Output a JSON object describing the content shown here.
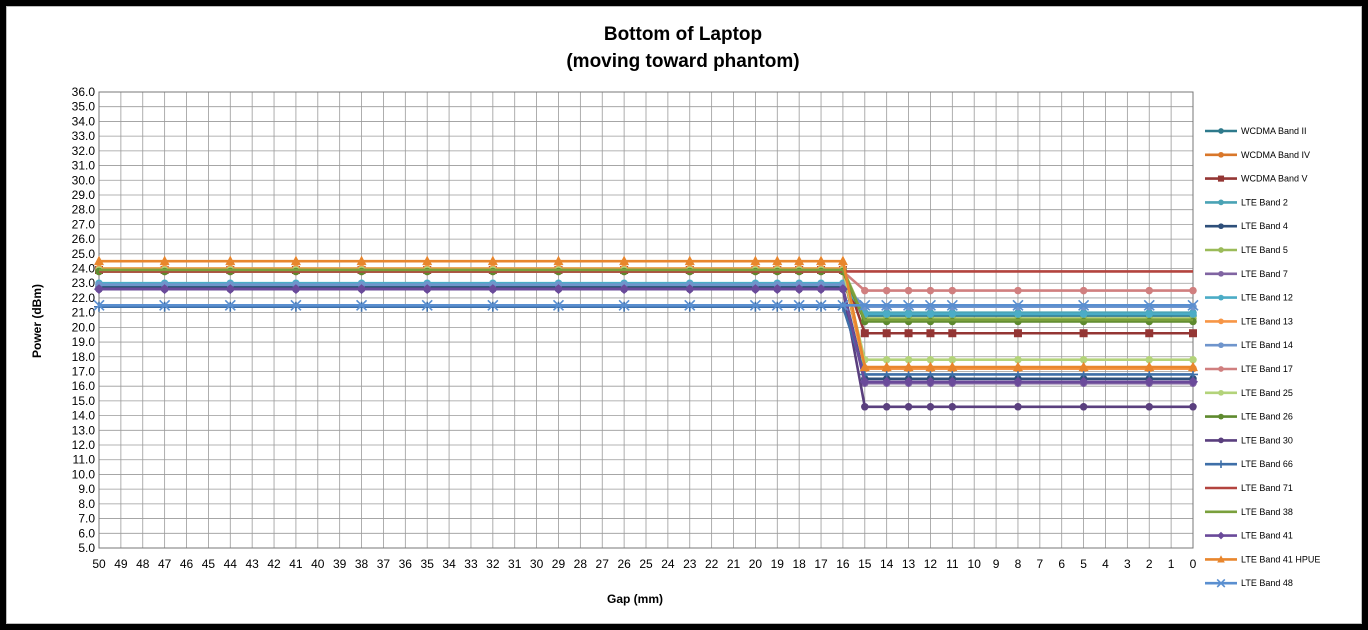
{
  "chart_data": {
    "type": "line",
    "title": "Bottom of Laptop",
    "subtitle": "(moving toward phantom)",
    "xlabel": "Gap (mm)",
    "ylabel": "Power (dBm)",
    "x_categories": [
      50,
      49,
      48,
      47,
      46,
      45,
      44,
      43,
      42,
      41,
      40,
      39,
      38,
      37,
      36,
      35,
      34,
      33,
      32,
      31,
      30,
      29,
      28,
      27,
      26,
      25,
      24,
      23,
      22,
      21,
      20,
      19,
      18,
      17,
      16,
      15,
      14,
      13,
      12,
      11,
      10,
      9,
      8,
      7,
      6,
      5,
      4,
      3,
      2,
      1,
      0
    ],
    "x_ticks": [
      "50",
      "49",
      "48",
      "47",
      "46",
      "45",
      "44",
      "43",
      "42",
      "41",
      "40",
      "39",
      "38",
      "37",
      "36",
      "35",
      "34",
      "33",
      "32",
      "31",
      "30",
      "29",
      "28",
      "27",
      "26",
      "25",
      "24",
      "23",
      "22",
      "21",
      "20",
      "19",
      "18",
      "17",
      "16",
      "15",
      "14",
      "13",
      "12",
      "11",
      "10",
      "9",
      "8",
      "7",
      "6",
      "5",
      "4",
      "3",
      "2",
      "1",
      "0"
    ],
    "ylim": [
      5,
      36
    ],
    "y_ticks": [
      "5.0",
      "6.0",
      "7.0",
      "8.0",
      "9.0",
      "10.0",
      "11.0",
      "12.0",
      "13.0",
      "14.0",
      "15.0",
      "16.0",
      "17.0",
      "18.0",
      "19.0",
      "20.0",
      "21.0",
      "22.0",
      "23.0",
      "24.0",
      "25.0",
      "26.0",
      "27.0",
      "28.0",
      "29.0",
      "30.0",
      "31.0",
      "32.0",
      "33.0",
      "34.0",
      "35.0",
      "36.0"
    ],
    "grid": true,
    "legend_position": "right",
    "marker_gaps": [
      50,
      47,
      44,
      41,
      38,
      35,
      32,
      29,
      26,
      23,
      20,
      19,
      18,
      17,
      16,
      15,
      14,
      13,
      12,
      11,
      8,
      5,
      2,
      0
    ],
    "series": [
      {
        "name": "WCDMA Band II",
        "color": "#2e7a8c",
        "marker": "circle",
        "values": [
          {
            "x": 50,
            "y": 22.8
          },
          {
            "x": 16,
            "y": 22.8
          },
          {
            "x": 15,
            "y": 20.8
          },
          {
            "x": 0,
            "y": 20.8
          }
        ]
      },
      {
        "name": "WCDMA Band IV",
        "color": "#d9772a",
        "marker": "circle",
        "values": [
          {
            "x": 50,
            "y": 23.8
          },
          {
            "x": 16,
            "y": 23.8
          },
          {
            "x": 15,
            "y": 17.2
          },
          {
            "x": 0,
            "y": 17.2
          }
        ]
      },
      {
        "name": "WCDMA Band V",
        "color": "#943634",
        "marker": "square",
        "values": [
          {
            "x": 50,
            "y": 23.9
          },
          {
            "x": 16,
            "y": 23.9
          },
          {
            "x": 15,
            "y": 19.6
          },
          {
            "x": 0,
            "y": 19.6
          }
        ]
      },
      {
        "name": "LTE Band 2",
        "color": "#4aa3b5",
        "marker": "circle",
        "values": [
          {
            "x": 50,
            "y": 22.9
          },
          {
            "x": 16,
            "y": 22.9
          },
          {
            "x": 15,
            "y": 21.0
          },
          {
            "x": 0,
            "y": 21.0
          }
        ]
      },
      {
        "name": "LTE Band 4",
        "color": "#2e4f7a",
        "marker": "circle",
        "values": [
          {
            "x": 50,
            "y": 22.7
          },
          {
            "x": 16,
            "y": 22.7
          },
          {
            "x": 15,
            "y": 16.5
          },
          {
            "x": 0,
            "y": 16.5
          }
        ]
      },
      {
        "name": "LTE Band 5",
        "color": "#9bbb59",
        "marker": "circle",
        "values": [
          {
            "x": 50,
            "y": 24.0
          },
          {
            "x": 16,
            "y": 24.0
          },
          {
            "x": 15,
            "y": 20.6
          },
          {
            "x": 0,
            "y": 20.6
          }
        ]
      },
      {
        "name": "LTE Band 7",
        "color": "#8064a2",
        "marker": "circle",
        "values": [
          {
            "x": 50,
            "y": 22.6
          },
          {
            "x": 16,
            "y": 22.6
          },
          {
            "x": 15,
            "y": 16.2
          },
          {
            "x": 0,
            "y": 16.2
          }
        ]
      },
      {
        "name": "LTE Band 12",
        "color": "#4bacc6",
        "marker": "circle",
        "values": [
          {
            "x": 50,
            "y": 23.0
          },
          {
            "x": 16,
            "y": 23.0
          },
          {
            "x": 15,
            "y": 20.9
          },
          {
            "x": 0,
            "y": 20.9
          }
        ]
      },
      {
        "name": "LTE Band 13",
        "color": "#f79646",
        "marker": "circle",
        "values": [
          {
            "x": 50,
            "y": 24.0
          },
          {
            "x": 16,
            "y": 24.0
          },
          {
            "x": 15,
            "y": 17.2
          },
          {
            "x": 0,
            "y": 17.2
          }
        ]
      },
      {
        "name": "LTE Band 14",
        "color": "#6f95cc",
        "marker": "circle",
        "values": [
          {
            "x": 50,
            "y": 22.9
          },
          {
            "x": 16,
            "y": 22.9
          },
          {
            "x": 15,
            "y": 21.4
          },
          {
            "x": 0,
            "y": 21.4
          }
        ]
      },
      {
        "name": "LTE Band 17",
        "color": "#d07f7f",
        "marker": "circle",
        "values": [
          {
            "x": 50,
            "y": 23.8
          },
          {
            "x": 16,
            "y": 23.8
          },
          {
            "x": 15,
            "y": 22.5
          },
          {
            "x": 0,
            "y": 22.5
          }
        ]
      },
      {
        "name": "LTE Band 25",
        "color": "#b3d37a",
        "marker": "circle",
        "values": [
          {
            "x": 50,
            "y": 23.9
          },
          {
            "x": 16,
            "y": 23.9
          },
          {
            "x": 15,
            "y": 17.8
          },
          {
            "x": 0,
            "y": 17.8
          }
        ]
      },
      {
        "name": "LTE Band 26",
        "color": "#5e8a2e",
        "marker": "circle",
        "values": [
          {
            "x": 50,
            "y": 23.8
          },
          {
            "x": 16,
            "y": 23.8
          },
          {
            "x": 15,
            "y": 20.4
          },
          {
            "x": 0,
            "y": 20.4
          }
        ]
      },
      {
        "name": "LTE Band 30",
        "color": "#5a3f7e",
        "marker": "circle",
        "values": [
          {
            "x": 50,
            "y": 22.6
          },
          {
            "x": 16,
            "y": 22.6
          },
          {
            "x": 15,
            "y": 14.6
          },
          {
            "x": 0,
            "y": 14.6
          }
        ]
      },
      {
        "name": "LTE Band 66",
        "color": "#3e6fa8",
        "marker": "plus",
        "values": [
          {
            "x": 50,
            "y": 21.4
          },
          {
            "x": 16,
            "y": 21.4
          },
          {
            "x": 15,
            "y": 16.8
          },
          {
            "x": 0,
            "y": 16.8
          }
        ]
      },
      {
        "name": "LTE Band 71",
        "color": "#b3443f",
        "marker": "none",
        "values": [
          {
            "x": 50,
            "y": 23.8
          },
          {
            "x": 0,
            "y": 23.8
          }
        ]
      },
      {
        "name": "LTE Band 38",
        "color": "#7aa03c",
        "marker": "none",
        "values": [
          {
            "x": 50,
            "y": 23.9
          },
          {
            "x": 16,
            "y": 23.9
          },
          {
            "x": 15,
            "y": 20.5
          },
          {
            "x": 0,
            "y": 20.5
          }
        ]
      },
      {
        "name": "LTE Band 41",
        "color": "#6a4a9a",
        "marker": "diamond",
        "values": [
          {
            "x": 50,
            "y": 22.6
          },
          {
            "x": 16,
            "y": 22.6
          },
          {
            "x": 15,
            "y": 16.3
          },
          {
            "x": 0,
            "y": 16.3
          }
        ]
      },
      {
        "name": "LTE Band 41 HPUE",
        "color": "#e8862d",
        "marker": "triangle",
        "values": [
          {
            "x": 50,
            "y": 24.5
          },
          {
            "x": 16,
            "y": 24.5
          },
          {
            "x": 15,
            "y": 17.3
          },
          {
            "x": 0,
            "y": 17.3
          }
        ]
      },
      {
        "name": "LTE Band 48",
        "color": "#5a8fd0",
        "marker": "x",
        "values": [
          {
            "x": 50,
            "y": 21.5
          },
          {
            "x": 16,
            "y": 21.5
          },
          {
            "x": 15,
            "y": 21.5
          },
          {
            "x": 0,
            "y": 21.5
          }
        ]
      }
    ]
  }
}
